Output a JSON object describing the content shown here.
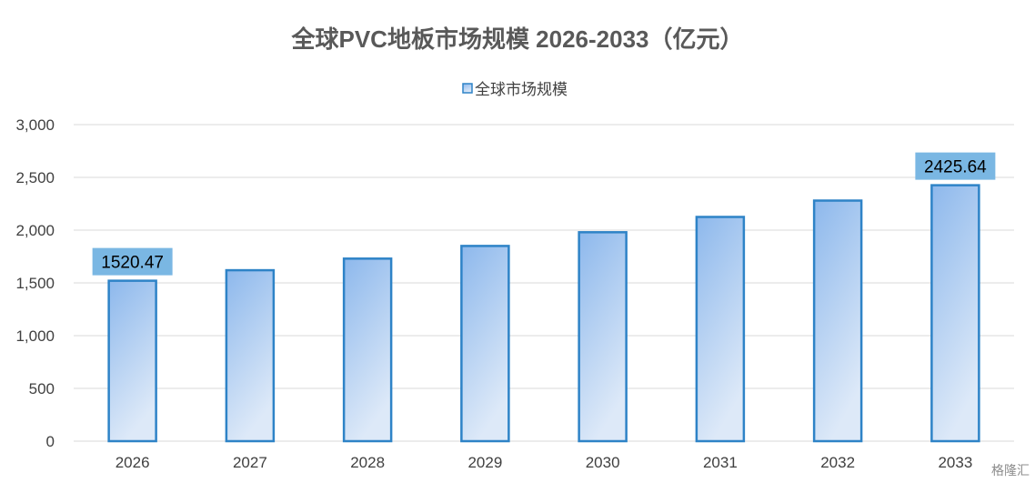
{
  "chart_data": {
    "type": "bar",
    "title": "全球PVC地板市场规模 2026-2033（亿元）",
    "categories": [
      "2026",
      "2027",
      "2028",
      "2029",
      "2030",
      "2031",
      "2032",
      "2033"
    ],
    "series": [
      {
        "name": "全球市场规模",
        "values": [
          1520.47,
          1620,
          1730,
          1850,
          1980,
          2125,
          2280,
          2425.64
        ]
      }
    ],
    "data_labels": [
      {
        "index": 0,
        "text": "1520.47"
      },
      {
        "index": 7,
        "text": "2425.64"
      }
    ],
    "ylim": [
      0,
      3000
    ],
    "yticks": [
      0,
      500,
      1000,
      1500,
      2000,
      2500,
      3000
    ],
    "ytick_labels": [
      "0",
      "500",
      "1,000",
      "1,500",
      "2,000",
      "2,500",
      "3,000"
    ],
    "grid": true,
    "legend": "top-center",
    "colors": {
      "bar_fill_top": "#8db8ec",
      "bar_fill_bottom": "#dde9f8",
      "bar_stroke": "#2e83c7",
      "label_bg": "#7ab7e3",
      "grid": "#d9d9d9"
    }
  },
  "watermark": "格隆汇"
}
